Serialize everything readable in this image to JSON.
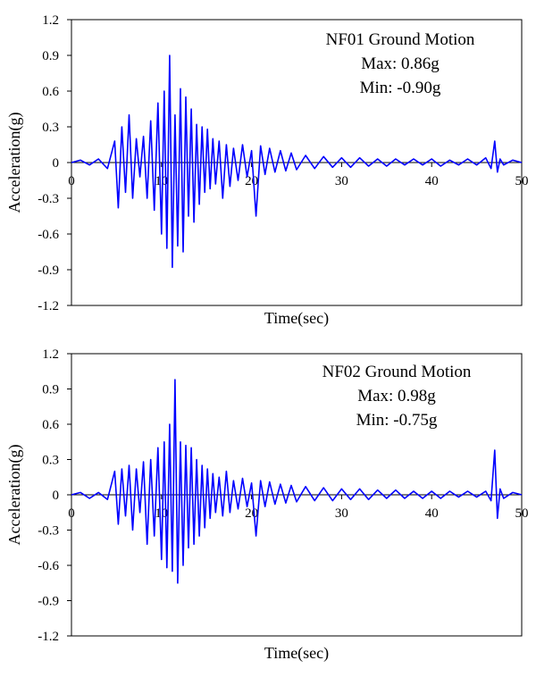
{
  "chart_data": [
    {
      "type": "line",
      "title": "",
      "annotation": [
        "NF01 Ground Motion",
        "Max: 0.86g",
        "Min: -0.90g"
      ],
      "xlabel": "Time(sec)",
      "ylabel": "Acceleration(g)",
      "xlim": [
        0,
        50
      ],
      "ylim": [
        -1.2,
        1.2
      ],
      "xticks": [
        0,
        10,
        20,
        30,
        40,
        50
      ],
      "yticks": [
        1.2,
        0.9,
        0.6,
        0.3,
        0,
        -0.3,
        -0.6,
        -0.9,
        -1.2
      ],
      "ytick_labels": [
        "1.2",
        "0.9",
        "0.6",
        "0.3",
        "0",
        "-0.3",
        "-0.6",
        "-0.9",
        "-1.2"
      ],
      "grid": false,
      "color": "#0000ff",
      "series": [
        {
          "x": [
            0,
            1,
            2,
            3,
            4,
            4.8,
            5.2,
            5.6,
            6,
            6.4,
            6.8,
            7.2,
            7.6,
            8,
            8.4,
            8.8,
            9.2,
            9.6,
            10,
            10.3,
            10.6,
            10.9,
            11.2,
            11.5,
            11.8,
            12.1,
            12.4,
            12.7,
            13,
            13.3,
            13.6,
            13.9,
            14.2,
            14.5,
            14.8,
            15.1,
            15.4,
            15.7,
            16,
            16.4,
            16.8,
            17.2,
            17.6,
            18,
            18.5,
            19,
            19.5,
            20,
            20.5,
            21,
            21.5,
            22,
            22.6,
            23.2,
            23.8,
            24.4,
            25,
            26,
            27,
            28,
            29,
            30,
            31,
            32,
            33,
            34,
            35,
            36,
            37,
            38,
            39,
            40,
            41,
            42,
            43,
            44,
            45,
            46,
            46.6,
            47,
            47.3,
            47.6,
            48,
            49,
            50
          ],
          "y": [
            0.0,
            0.02,
            -0.02,
            0.03,
            -0.05,
            0.18,
            -0.38,
            0.3,
            -0.25,
            0.4,
            -0.3,
            0.2,
            -0.12,
            0.22,
            -0.3,
            0.35,
            -0.4,
            0.5,
            -0.6,
            0.6,
            -0.72,
            0.9,
            -0.88,
            0.4,
            -0.7,
            0.62,
            -0.75,
            0.55,
            -0.45,
            0.45,
            -0.5,
            0.32,
            -0.35,
            0.3,
            -0.25,
            0.28,
            -0.22,
            0.2,
            -0.18,
            0.18,
            -0.3,
            0.15,
            -0.2,
            0.12,
            -0.15,
            0.15,
            -0.12,
            0.1,
            -0.45,
            0.14,
            -0.1,
            0.12,
            -0.08,
            0.1,
            -0.07,
            0.08,
            -0.06,
            0.06,
            -0.05,
            0.05,
            -0.04,
            0.04,
            -0.04,
            0.04,
            -0.03,
            0.03,
            -0.03,
            0.03,
            -0.02,
            0.03,
            -0.02,
            0.03,
            -0.03,
            0.02,
            -0.02,
            0.03,
            -0.02,
            0.04,
            -0.05,
            0.18,
            -0.08,
            0.03,
            -0.02,
            0.02,
            0.0
          ]
        }
      ]
    },
    {
      "type": "line",
      "title": "",
      "annotation": [
        "NF02 Ground Motion",
        "Max: 0.98g",
        "Min: -0.75g"
      ],
      "xlabel": "Time(sec)",
      "ylabel": "Acceleration(g)",
      "xlim": [
        0,
        50
      ],
      "ylim": [
        -1.2,
        1.2
      ],
      "xticks": [
        0,
        10,
        20,
        30,
        40,
        50
      ],
      "yticks": [
        1.2,
        0.9,
        0.6,
        0.3,
        0,
        -0.3,
        -0.6,
        -0.9,
        -1.2
      ],
      "ytick_labels": [
        "1.2",
        "0.9",
        "0.6",
        "0.3",
        "0",
        "-0.3",
        "-0.6",
        "-0.9",
        "-1.2"
      ],
      "grid": false,
      "color": "#0000ff",
      "series": [
        {
          "x": [
            0,
            1,
            2,
            3,
            4,
            4.8,
            5.2,
            5.6,
            6,
            6.4,
            6.8,
            7.2,
            7.6,
            8,
            8.4,
            8.8,
            9.2,
            9.6,
            10,
            10.3,
            10.6,
            10.9,
            11.2,
            11.5,
            11.8,
            12.1,
            12.4,
            12.7,
            13,
            13.3,
            13.6,
            13.9,
            14.2,
            14.5,
            14.8,
            15.1,
            15.4,
            15.7,
            16,
            16.4,
            16.8,
            17.2,
            17.6,
            18,
            18.5,
            19,
            19.5,
            20,
            20.5,
            21,
            21.5,
            22,
            22.6,
            23.2,
            23.8,
            24.4,
            25,
            26,
            27,
            28,
            29,
            30,
            31,
            32,
            33,
            34,
            35,
            36,
            37,
            38,
            39,
            40,
            41,
            42,
            43,
            44,
            45,
            46,
            46.6,
            47,
            47.3,
            47.6,
            48,
            49,
            50
          ],
          "y": [
            0.0,
            0.02,
            -0.03,
            0.02,
            -0.04,
            0.2,
            -0.25,
            0.22,
            -0.18,
            0.25,
            -0.3,
            0.22,
            -0.15,
            0.28,
            -0.42,
            0.3,
            -0.35,
            0.4,
            -0.55,
            0.45,
            -0.62,
            0.6,
            -0.65,
            0.98,
            -0.75,
            0.45,
            -0.6,
            0.42,
            -0.45,
            0.4,
            -0.42,
            0.3,
            -0.35,
            0.25,
            -0.28,
            0.22,
            -0.2,
            0.18,
            -0.15,
            0.15,
            -0.18,
            0.2,
            -0.15,
            0.12,
            -0.12,
            0.14,
            -0.1,
            0.1,
            -0.35,
            0.12,
            -0.1,
            0.11,
            -0.08,
            0.09,
            -0.07,
            0.08,
            -0.06,
            0.07,
            -0.05,
            0.06,
            -0.05,
            0.05,
            -0.04,
            0.05,
            -0.04,
            0.04,
            -0.03,
            0.04,
            -0.03,
            0.03,
            -0.03,
            0.03,
            -0.03,
            0.03,
            -0.02,
            0.03,
            -0.02,
            0.03,
            -0.05,
            0.38,
            -0.2,
            0.05,
            -0.03,
            0.02,
            0.0
          ]
        }
      ]
    }
  ]
}
